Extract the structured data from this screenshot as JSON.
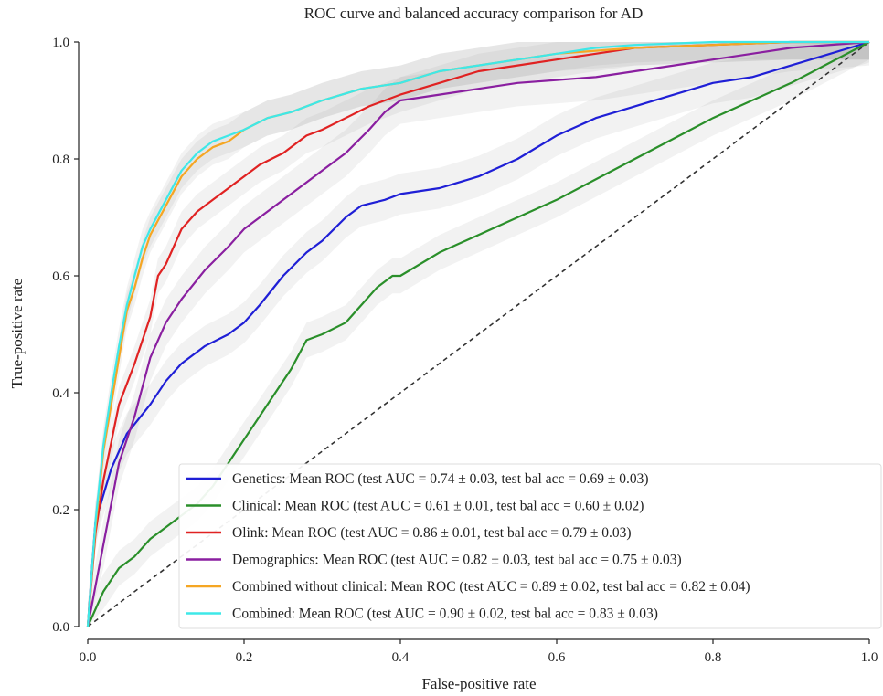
{
  "chart_data": {
    "type": "line",
    "title": "ROC curve and balanced accuracy comparison for AD",
    "xlabel": "False-positive rate",
    "ylabel": "True-positive rate",
    "xlim": [
      0,
      1
    ],
    "ylim": [
      0,
      1
    ],
    "x_ticks": [
      "0.0",
      "0.2",
      "0.4",
      "0.6",
      "0.8",
      "1.0"
    ],
    "y_ticks": [
      "0.0",
      "0.2",
      "0.4",
      "0.6",
      "0.8",
      "1.0"
    ],
    "grid": false,
    "legend_position": "bottom-right",
    "chance_line": {
      "x": [
        0,
        1
      ],
      "y": [
        0,
        1
      ],
      "color": "#333333",
      "style": "dashed"
    },
    "series": [
      {
        "name": "Genetics: Mean ROC (test AUC = 0.74 ± 0.03, test bal acc = 0.69 ± 0.03)",
        "color": "#1f1fd6",
        "x": [
          0,
          0.01,
          0.03,
          0.05,
          0.08,
          0.1,
          0.12,
          0.15,
          0.18,
          0.2,
          0.22,
          0.25,
          0.28,
          0.3,
          0.33,
          0.35,
          0.38,
          0.4,
          0.45,
          0.5,
          0.55,
          0.6,
          0.65,
          0.7,
          0.75,
          0.8,
          0.85,
          0.9,
          0.95,
          1
        ],
        "y": [
          0,
          0.18,
          0.27,
          0.33,
          0.38,
          0.42,
          0.45,
          0.48,
          0.5,
          0.52,
          0.55,
          0.6,
          0.64,
          0.66,
          0.7,
          0.72,
          0.73,
          0.74,
          0.75,
          0.77,
          0.8,
          0.84,
          0.87,
          0.89,
          0.91,
          0.93,
          0.94,
          0.96,
          0.98,
          1
        ],
        "band": 0.035
      },
      {
        "name": "Clinical: Mean ROC (test AUC = 0.61 ± 0.01, test bal acc = 0.60 ± 0.02)",
        "color": "#2a8f2a",
        "x": [
          0,
          0.02,
          0.04,
          0.06,
          0.08,
          0.1,
          0.12,
          0.14,
          0.16,
          0.18,
          0.2,
          0.22,
          0.24,
          0.26,
          0.28,
          0.3,
          0.33,
          0.35,
          0.37,
          0.39,
          0.4,
          0.45,
          0.5,
          0.6,
          0.7,
          0.8,
          0.9,
          1
        ],
        "y": [
          0,
          0.06,
          0.1,
          0.12,
          0.15,
          0.17,
          0.19,
          0.21,
          0.24,
          0.28,
          0.32,
          0.36,
          0.4,
          0.44,
          0.49,
          0.5,
          0.52,
          0.55,
          0.58,
          0.6,
          0.6,
          0.64,
          0.67,
          0.73,
          0.8,
          0.87,
          0.93,
          1
        ],
        "band": 0.03
      },
      {
        "name": "Olink: Mean ROC (test AUC = 0.86 ± 0.01, test bal acc = 0.79 ± 0.03)",
        "color": "#e02222",
        "x": [
          0,
          0.01,
          0.02,
          0.04,
          0.06,
          0.08,
          0.09,
          0.1,
          0.12,
          0.14,
          0.16,
          0.18,
          0.2,
          0.22,
          0.25,
          0.28,
          0.3,
          0.33,
          0.36,
          0.4,
          0.45,
          0.5,
          0.55,
          0.6,
          0.65,
          0.7,
          0.8,
          0.9,
          1
        ],
        "y": [
          0,
          0.16,
          0.25,
          0.38,
          0.45,
          0.53,
          0.6,
          0.62,
          0.68,
          0.71,
          0.73,
          0.75,
          0.77,
          0.79,
          0.81,
          0.84,
          0.85,
          0.87,
          0.89,
          0.91,
          0.93,
          0.95,
          0.96,
          0.97,
          0.98,
          0.99,
          0.995,
          1,
          1
        ],
        "band": 0.03
      },
      {
        "name": "Demographics: Mean ROC (test AUC = 0.82 ± 0.03, test bal acc = 0.75 ± 0.03)",
        "color": "#8a1fa0",
        "x": [
          0,
          0.02,
          0.04,
          0.06,
          0.08,
          0.1,
          0.12,
          0.15,
          0.18,
          0.2,
          0.22,
          0.25,
          0.28,
          0.3,
          0.33,
          0.36,
          0.38,
          0.4,
          0.45,
          0.5,
          0.55,
          0.6,
          0.65,
          0.7,
          0.75,
          0.8,
          0.85,
          0.9,
          1
        ],
        "y": [
          0,
          0.14,
          0.28,
          0.36,
          0.46,
          0.52,
          0.56,
          0.61,
          0.65,
          0.68,
          0.7,
          0.73,
          0.76,
          0.78,
          0.81,
          0.85,
          0.88,
          0.9,
          0.91,
          0.92,
          0.93,
          0.935,
          0.94,
          0.95,
          0.96,
          0.97,
          0.98,
          0.99,
          1
        ],
        "band": 0.04
      },
      {
        "name": "Combined without clinical: Mean ROC (test AUC = 0.89 ± 0.02, test bal acc = 0.82 ± 0.04)",
        "color": "#f5a623",
        "x": [
          0,
          0.01,
          0.02,
          0.03,
          0.04,
          0.05,
          0.06,
          0.07,
          0.08,
          0.1,
          0.12,
          0.14,
          0.16,
          0.18,
          0.2,
          0.23,
          0.26,
          0.3,
          0.35,
          0.4,
          0.45,
          0.5,
          0.55,
          0.6,
          0.65,
          0.7,
          0.8,
          0.9,
          1
        ],
        "y": [
          0,
          0.17,
          0.3,
          0.38,
          0.46,
          0.54,
          0.58,
          0.63,
          0.67,
          0.72,
          0.77,
          0.8,
          0.82,
          0.83,
          0.85,
          0.87,
          0.88,
          0.9,
          0.92,
          0.93,
          0.95,
          0.96,
          0.97,
          0.98,
          0.985,
          0.99,
          0.995,
          1,
          1
        ],
        "band": 0.03
      },
      {
        "name": "Combined: Mean ROC (test AUC = 0.90 ± 0.02, test bal acc = 0.83 ± 0.03)",
        "color": "#3ee8e8",
        "x": [
          0,
          0.01,
          0.02,
          0.03,
          0.04,
          0.05,
          0.06,
          0.07,
          0.08,
          0.1,
          0.12,
          0.14,
          0.16,
          0.18,
          0.2,
          0.23,
          0.26,
          0.3,
          0.35,
          0.4,
          0.45,
          0.5,
          0.55,
          0.6,
          0.65,
          0.7,
          0.8,
          0.9,
          1
        ],
        "y": [
          0,
          0.18,
          0.31,
          0.4,
          0.48,
          0.55,
          0.6,
          0.65,
          0.68,
          0.73,
          0.78,
          0.81,
          0.83,
          0.84,
          0.85,
          0.87,
          0.88,
          0.9,
          0.92,
          0.93,
          0.95,
          0.96,
          0.97,
          0.98,
          0.99,
          0.995,
          1,
          1,
          1
        ],
        "band": 0.03
      }
    ]
  }
}
